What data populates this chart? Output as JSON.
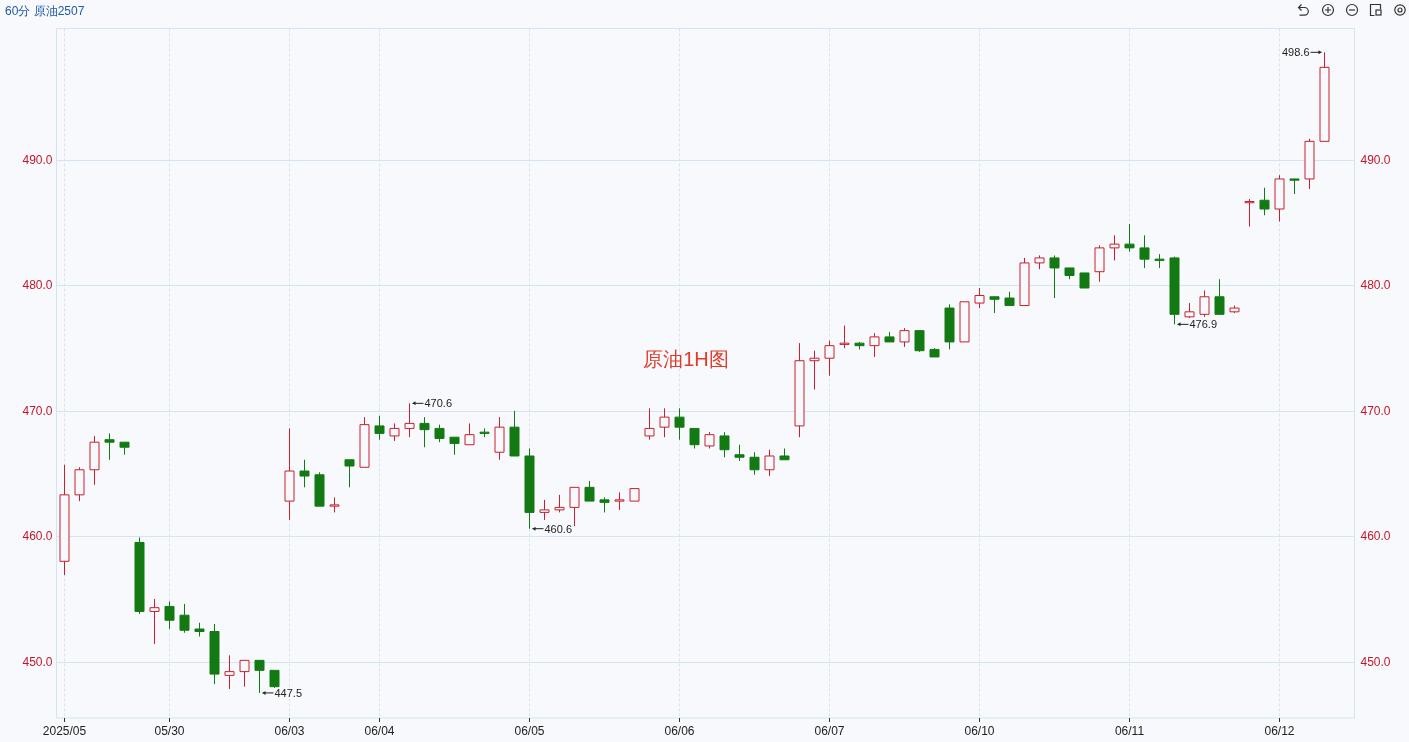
{
  "chart_data": {
    "type": "candlestick",
    "title": "60分 原油2507",
    "categories": [
      "2025/05",
      null,
      null,
      null,
      null,
      null,
      null,
      "05/30",
      null,
      null,
      null,
      null,
      null,
      null,
      null,
      "06/03",
      null,
      null,
      null,
      null,
      null,
      "06/04",
      null,
      null,
      null,
      null,
      null,
      null,
      null,
      null,
      null,
      "06/05",
      null,
      null,
      null,
      null,
      null,
      null,
      null,
      null,
      null,
      "06/06",
      null,
      null,
      null,
      null,
      null,
      null,
      null,
      null,
      null,
      "06/07",
      null,
      null,
      null,
      null,
      null,
      null,
      null,
      null,
      null,
      "06/10",
      null,
      null,
      null,
      null,
      null,
      null,
      null,
      null,
      null,
      "06/11",
      null,
      null,
      null,
      null,
      null,
      null,
      null,
      null,
      null,
      "06/12",
      null,
      null,
      null
    ],
    "ohlc": [
      [
        458.0,
        465.7,
        456.9,
        463.3
      ],
      [
        463.3,
        465.5,
        462.8,
        465.3
      ],
      [
        465.3,
        468.0,
        464.1,
        467.5
      ],
      [
        467.7,
        468.2,
        466.1,
        467.5
      ],
      [
        467.5,
        467.5,
        466.5,
        467.1
      ],
      [
        459.5,
        459.9,
        453.8,
        454.0
      ],
      [
        454.0,
        455.0,
        451.4,
        454.3
      ],
      [
        454.4,
        454.8,
        452.6,
        453.3
      ],
      [
        453.7,
        454.6,
        452.3,
        452.5
      ],
      [
        452.6,
        453.1,
        452.0,
        452.4
      ],
      [
        452.4,
        453.0,
        448.2,
        449.0
      ],
      [
        448.9,
        450.5,
        447.8,
        449.2
      ],
      [
        449.2,
        450.1,
        448.0,
        450.1
      ],
      [
        450.1,
        450.1,
        447.5,
        449.3
      ],
      [
        449.3,
        449.3,
        447.9,
        448.0
      ],
      [
        462.8,
        468.6,
        461.3,
        465.2
      ],
      [
        465.2,
        466.1,
        463.9,
        464.8
      ],
      [
        464.9,
        465.1,
        462.4,
        462.4
      ],
      [
        462.4,
        463.1,
        461.9,
        462.5
      ],
      [
        466.1,
        466.1,
        463.9,
        465.6
      ],
      [
        465.5,
        469.5,
        465.5,
        468.9
      ],
      [
        468.8,
        469.6,
        467.7,
        468.2
      ],
      [
        468.0,
        469.0,
        467.6,
        468.6
      ],
      [
        468.6,
        470.6,
        467.9,
        469.0
      ],
      [
        469.0,
        469.5,
        467.1,
        468.5
      ],
      [
        468.6,
        468.9,
        467.5,
        467.8
      ],
      [
        467.9,
        467.9,
        466.5,
        467.4
      ],
      [
        467.3,
        469.0,
        467.3,
        468.1
      ],
      [
        468.3,
        468.6,
        467.9,
        468.2
      ],
      [
        466.7,
        469.5,
        466.1,
        468.7
      ],
      [
        468.7,
        470.0,
        466.4,
        466.4
      ],
      [
        466.4,
        467.0,
        460.6,
        461.9
      ],
      [
        461.9,
        462.9,
        461.3,
        462.1
      ],
      [
        462.1,
        463.3,
        461.9,
        462.3
      ],
      [
        462.3,
        463.9,
        460.8,
        463.9
      ],
      [
        463.9,
        464.4,
        462.8,
        462.8
      ],
      [
        462.9,
        463.1,
        461.9,
        462.7
      ],
      [
        462.8,
        463.5,
        462.1,
        462.9
      ],
      [
        462.8,
        463.8,
        462.8,
        463.8
      ],
      [
        468.0,
        470.2,
        467.7,
        468.6
      ],
      [
        468.7,
        470.2,
        467.9,
        469.5
      ],
      [
        469.5,
        470.2,
        467.7,
        468.7
      ],
      [
        468.6,
        468.6,
        467.0,
        467.3
      ],
      [
        467.2,
        468.3,
        467.0,
        468.1
      ],
      [
        468.0,
        468.3,
        466.3,
        466.9
      ],
      [
        466.5,
        467.3,
        466.0,
        466.3
      ],
      [
        466.3,
        466.7,
        464.9,
        465.3
      ],
      [
        465.3,
        466.9,
        464.8,
        466.4
      ],
      [
        466.4,
        467.0,
        466.1,
        466.1
      ],
      [
        468.8,
        475.4,
        467.9,
        474.0
      ],
      [
        474.0,
        474.8,
        471.7,
        474.2
      ],
      [
        474.2,
        475.6,
        472.8,
        475.2
      ],
      [
        475.3,
        476.8,
        475.0,
        475.4
      ],
      [
        475.4,
        475.5,
        474.9,
        475.2
      ],
      [
        475.2,
        476.2,
        474.3,
        475.9
      ],
      [
        475.9,
        476.3,
        475.5,
        475.5
      ],
      [
        475.5,
        476.6,
        475.1,
        476.4
      ],
      [
        476.4,
        476.4,
        474.7,
        474.8
      ],
      [
        474.9,
        475.0,
        474.3,
        474.3
      ],
      [
        478.2,
        478.5,
        474.9,
        475.5
      ],
      [
        475.5,
        478.7,
        475.5,
        478.7
      ],
      [
        478.6,
        479.8,
        478.2,
        479.2
      ],
      [
        479.1,
        479.1,
        477.8,
        478.9
      ],
      [
        479.0,
        479.5,
        478.4,
        478.4
      ],
      [
        478.4,
        482.2,
        478.4,
        481.8
      ],
      [
        481.8,
        482.4,
        481.3,
        482.2
      ],
      [
        482.2,
        482.4,
        479.0,
        481.4
      ],
      [
        481.4,
        481.4,
        480.5,
        480.8
      ],
      [
        481.0,
        481.0,
        479.8,
        479.8
      ],
      [
        481.1,
        483.2,
        480.3,
        483.0
      ],
      [
        483.0,
        484.0,
        482.0,
        483.3
      ],
      [
        483.3,
        484.9,
        482.7,
        483.0
      ],
      [
        483.0,
        484.0,
        481.4,
        482.1
      ],
      [
        482.1,
        482.5,
        481.4,
        482.0
      ],
      [
        482.2,
        482.3,
        476.9,
        477.7
      ],
      [
        477.5,
        478.6,
        477.4,
        477.9
      ],
      [
        477.7,
        479.6,
        477.5,
        479.1
      ],
      [
        479.1,
        480.5,
        477.7,
        477.7
      ],
      [
        477.9,
        478.4,
        477.8,
        478.2
      ],
      [
        486.6,
        486.9,
        484.7,
        486.7
      ],
      [
        486.8,
        487.8,
        485.6,
        486.1
      ],
      [
        486.1,
        488.8,
        485.1,
        488.5
      ],
      [
        488.5,
        488.5,
        487.3,
        488.4
      ],
      [
        488.5,
        491.7,
        487.7,
        491.5
      ],
      [
        491.5,
        498.6,
        491.5,
        497.4
      ]
    ],
    "colors": [
      "#c8202f",
      "#c8202f",
      "#c8202f",
      "#137a13",
      "#137a13",
      "#137a13",
      "#c8202f",
      "#137a13",
      "#137a13",
      "#137a13",
      "#137a13",
      "#c8202f",
      "#c8202f",
      "#137a13",
      "#137a13",
      "#c8202f",
      "#137a13",
      "#137a13",
      "#c8202f",
      "#137a13",
      "#c8202f",
      "#137a13",
      "#c8202f",
      "#c8202f",
      "#137a13",
      "#137a13",
      "#137a13",
      "#c8202f",
      "#137a13",
      "#c8202f",
      "#137a13",
      "#137a13",
      "#c8202f",
      "#c8202f",
      "#c8202f",
      "#137a13",
      "#137a13",
      "#c8202f",
      "#c8202f",
      "#c8202f",
      "#c8202f",
      "#137a13",
      "#137a13",
      "#c8202f",
      "#137a13",
      "#137a13",
      "#137a13",
      "#c8202f",
      "#137a13",
      "#c8202f",
      "#c8202f",
      "#c8202f",
      "#c8202f",
      "#137a13",
      "#c8202f",
      "#137a13",
      "#c8202f",
      "#137a13",
      "#137a13",
      "#137a13",
      "#c8202f",
      "#c8202f",
      "#137a13",
      "#137a13",
      "#c8202f",
      "#c8202f",
      "#137a13",
      "#137a13",
      "#137a13",
      "#c8202f",
      "#c8202f",
      "#137a13",
      "#137a13",
      "#137a13",
      "#137a13",
      "#c8202f",
      "#c8202f",
      "#137a13",
      "#c8202f",
      "#c8202f",
      "#137a13",
      "#c8202f",
      "#137a13",
      "#c8202f",
      "#c8202f"
    ],
    "ylim": [
      445.5,
      500.5
    ],
    "yticks": [
      {
        "value": 450,
        "label": "450.0"
      },
      {
        "value": 460,
        "label": "460.0"
      },
      {
        "value": 470,
        "label": "470.0"
      },
      {
        "value": 480,
        "label": "480.0"
      },
      {
        "value": 490,
        "label": "490.0"
      }
    ],
    "y2lim": [
      445.5,
      500.5
    ],
    "y2ticks": [
      {
        "value": 450,
        "label": "450.0"
      },
      {
        "value": 460,
        "label": "460.0"
      },
      {
        "value": 470,
        "label": "470.0"
      },
      {
        "value": 480,
        "label": "480.0"
      },
      {
        "value": 490,
        "label": "490.0"
      }
    ],
    "grid": true,
    "annotations": [
      "原油1H图",
      "498.6",
      "470.6",
      "447.5",
      "460.6",
      "476.9"
    ]
  }
}
